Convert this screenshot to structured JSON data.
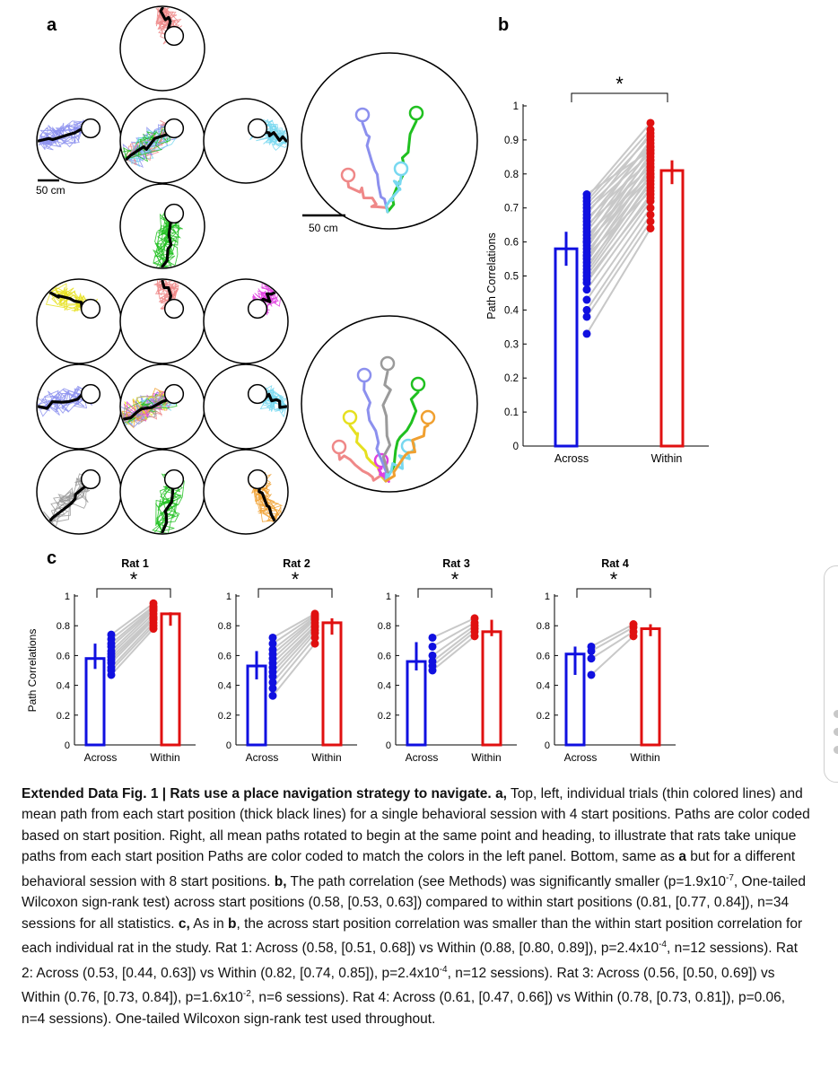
{
  "panel_labels": {
    "a": "a",
    "b": "b",
    "c": "c"
  },
  "scale_bars": {
    "left": "50 cm",
    "right": "50 cm"
  },
  "colors": {
    "across": "#1010e0",
    "within": "#e01010",
    "pairs": "#c8c8c8",
    "start_positions_4": [
      "#ef8888",
      "#8c90ee",
      "#20c020",
      "#78d8f0"
    ],
    "start_positions_8": [
      "#e6e020",
      "#ef8888",
      "#e040e0",
      "#8c90ee",
      "#9a9a9a",
      "#20c020",
      "#78d8f0",
      "#f0a030"
    ]
  },
  "chart_data": [
    {
      "id": "b",
      "type": "bar",
      "categories": [
        "Across",
        "Within"
      ],
      "values": [
        0.58,
        0.81
      ],
      "ci": [
        [
          0.53,
          0.63
        ],
        [
          0.77,
          0.84
        ]
      ],
      "ylabel": "Path Correlations",
      "ylim": [
        0,
        1
      ],
      "yticks": [
        "0",
        "0.1",
        "0.2",
        "0.3",
        "0.4",
        "0.5",
        "0.6",
        "0.7",
        "0.8",
        "0.9",
        "1"
      ],
      "significance": "*",
      "pairs": [
        [
          0.33,
          0.64
        ],
        [
          0.38,
          0.66
        ],
        [
          0.4,
          0.68
        ],
        [
          0.43,
          0.7
        ],
        [
          0.46,
          0.72
        ],
        [
          0.48,
          0.74
        ],
        [
          0.49,
          0.73
        ],
        [
          0.5,
          0.76
        ],
        [
          0.51,
          0.78
        ],
        [
          0.52,
          0.8
        ],
        [
          0.53,
          0.77
        ],
        [
          0.54,
          0.82
        ],
        [
          0.55,
          0.79
        ],
        [
          0.56,
          0.84
        ],
        [
          0.57,
          0.81
        ],
        [
          0.58,
          0.86
        ],
        [
          0.59,
          0.83
        ],
        [
          0.6,
          0.88
        ],
        [
          0.61,
          0.85
        ],
        [
          0.62,
          0.8
        ],
        [
          0.63,
          0.87
        ],
        [
          0.64,
          0.9
        ],
        [
          0.65,
          0.82
        ],
        [
          0.66,
          0.89
        ],
        [
          0.67,
          0.84
        ],
        [
          0.68,
          0.92
        ],
        [
          0.69,
          0.86
        ],
        [
          0.7,
          0.88
        ],
        [
          0.71,
          0.91
        ],
        [
          0.72,
          0.93
        ],
        [
          0.73,
          0.95
        ],
        [
          0.74,
          0.87
        ],
        [
          0.56,
          0.75
        ],
        [
          0.6,
          0.79
        ]
      ]
    },
    {
      "id": "c1",
      "type": "bar",
      "title": "Rat 1",
      "categories": [
        "Across",
        "Within"
      ],
      "values": [
        0.58,
        0.88
      ],
      "ci": [
        [
          0.51,
          0.68
        ],
        [
          0.8,
          0.89
        ]
      ],
      "ylabel": "Path Correlations",
      "ylim": [
        0,
        1
      ],
      "yticks": [
        "0",
        "0.2",
        "0.4",
        "0.6",
        "0.8",
        "1"
      ],
      "significance": "*",
      "pairs": [
        [
          0.47,
          0.78
        ],
        [
          0.5,
          0.8
        ],
        [
          0.52,
          0.82
        ],
        [
          0.55,
          0.84
        ],
        [
          0.57,
          0.85
        ],
        [
          0.59,
          0.86
        ],
        [
          0.61,
          0.88
        ],
        [
          0.63,
          0.9
        ],
        [
          0.66,
          0.91
        ],
        [
          0.68,
          0.92
        ],
        [
          0.71,
          0.93
        ],
        [
          0.74,
          0.95
        ]
      ]
    },
    {
      "id": "c2",
      "type": "bar",
      "title": "Rat 2",
      "categories": [
        "Across",
        "Within"
      ],
      "values": [
        0.53,
        0.82
      ],
      "ci": [
        [
          0.44,
          0.63
        ],
        [
          0.74,
          0.85
        ]
      ],
      "ylabel": "",
      "ylim": [
        0,
        1
      ],
      "yticks": [
        "0",
        "0.2",
        "0.4",
        "0.6",
        "0.8",
        "1"
      ],
      "significance": "*",
      "pairs": [
        [
          0.33,
          0.68
        ],
        [
          0.38,
          0.72
        ],
        [
          0.42,
          0.75
        ],
        [
          0.46,
          0.77
        ],
        [
          0.49,
          0.79
        ],
        [
          0.52,
          0.8
        ],
        [
          0.55,
          0.82
        ],
        [
          0.58,
          0.84
        ],
        [
          0.61,
          0.85
        ],
        [
          0.64,
          0.86
        ],
        [
          0.68,
          0.87
        ],
        [
          0.72,
          0.88
        ]
      ]
    },
    {
      "id": "c3",
      "type": "bar",
      "title": "Rat 3",
      "categories": [
        "Across",
        "Within"
      ],
      "values": [
        0.56,
        0.76
      ],
      "ci": [
        [
          0.5,
          0.69
        ],
        [
          0.73,
          0.84
        ]
      ],
      "ylabel": "",
      "ylim": [
        0,
        1
      ],
      "yticks": [
        "0",
        "0.2",
        "0.4",
        "0.6",
        "0.8",
        "1"
      ],
      "significance": "*",
      "pairs": [
        [
          0.5,
          0.73
        ],
        [
          0.53,
          0.76
        ],
        [
          0.56,
          0.78
        ],
        [
          0.6,
          0.8
        ],
        [
          0.66,
          0.82
        ],
        [
          0.72,
          0.85
        ]
      ]
    },
    {
      "id": "c4",
      "type": "bar",
      "title": "Rat 4",
      "categories": [
        "Across",
        "Within"
      ],
      "values": [
        0.61,
        0.78
      ],
      "ci": [
        [
          0.47,
          0.66
        ],
        [
          0.73,
          0.81
        ]
      ],
      "ylabel": "",
      "ylim": [
        0,
        1
      ],
      "yticks": [
        "0",
        "0.2",
        "0.4",
        "0.6",
        "0.8",
        "1"
      ],
      "significance": "*",
      "pairs": [
        [
          0.47,
          0.73
        ],
        [
          0.58,
          0.76
        ],
        [
          0.63,
          0.79
        ],
        [
          0.66,
          0.81
        ]
      ]
    }
  ],
  "caption": {
    "title": "Extended Data Fig. 1 | Rats use a place navigation strategy to navigate.",
    "a_label": "a,",
    "a_text": "Top, left, individual trials (thin colored lines) and mean path from each start position (thick black lines) for a single behavioral session with 4 start positions. Paths are color coded based on start position. Right, all mean paths rotated to begin at the same point and heading, to illustrate that rats take unique paths from each start position Paths are color coded to match the colors in the left panel. Bottom, same as",
    "a_ref": "a",
    "a_text2": "but for a different behavioral session with 8 start positions.",
    "b_label": "b,",
    "b_text1": "The path correlation (see Methods) was significantly smaller (p=1.9x10",
    "b_exp": "-7",
    "b_text2": ", One-tailed Wilcoxon sign-rank test) across start positions (0.58, [0.53, 0.63]) compared to within start positions (0.81, [0.77, 0.84]), n=34 sessions for all statistics.",
    "c_label": "c,",
    "c_text1": "As in",
    "c_ref": "b",
    "c_text2": ", the across start position correlation was smaller than the within start position correlation for each individual rat in the study. Rat 1: Across (0.58, [0.51, 0.68]) vs Within (0.88, [0.80, 0.89]), p=2.4x10",
    "c_exp1": "-4",
    "c_text3": ", n=12 sessions). Rat 2: Across (0.53, [0.44, 0.63]) vs Within (0.82, [0.74, 0.85]), p=2.4x10",
    "c_exp2": "-4",
    "c_text4": ", n=12 sessions). Rat 3: Across (0.56, [0.50, 0.69]) vs Within (0.76, [0.73, 0.84]), p=1.6x10",
    "c_exp3": "-2",
    "c_text5": ", n=6 sessions). Rat 4: Across (0.61, [0.47, 0.66]) vs Within (0.78, [0.73, 0.81]), p=0.06, n=4 sessions). One-tailed Wilcoxon sign-rank test used throughout."
  }
}
